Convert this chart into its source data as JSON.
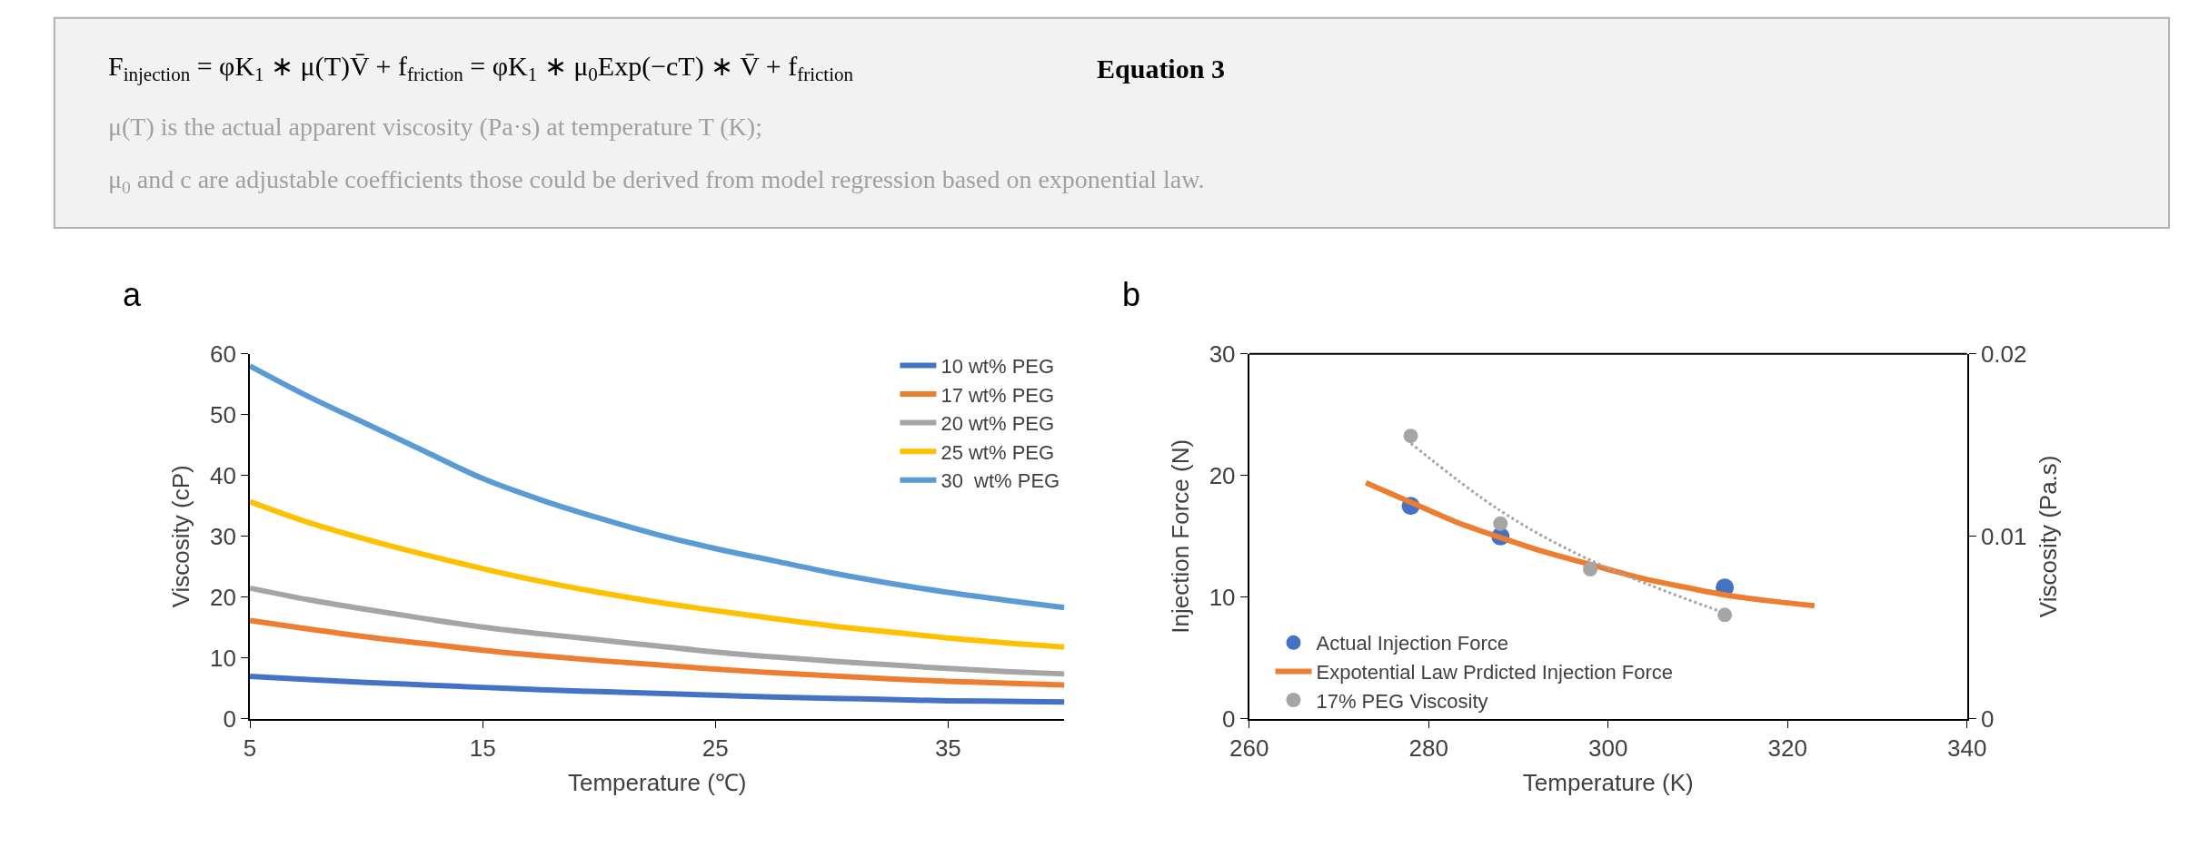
{
  "chart_data": [
    {
      "type": "other",
      "annotations": [
        "F$_{injection}$ = φK$_{1}$ ∗ μ(T)V̄ + f$_{friction}$ = φK$_{1}$ ∗ μ$_{0}$Exp(−cT) ∗ V̄ + f$_{friction}$",
        "Equation 3",
        "μ(T) is the actual apparent viscosity (Pa·s) at temperature T (K);",
        "μ$_{0}$ and c are adjustable coefficients those could be derived from model regression based on exponential law."
      ]
    },
    {
      "type": "line",
      "xlabel": "Temperature (℃)",
      "ylabel": "Viscosity (cP)",
      "annotations": [
        "a"
      ],
      "x": [
        5,
        7.5,
        10,
        12.5,
        15,
        17.5,
        20,
        22.5,
        25,
        27.5,
        30,
        32.5,
        35,
        37.5,
        40
      ],
      "xlim": [
        5,
        40
      ],
      "xticks": [
        5,
        15,
        25,
        35
      ],
      "ylim": [
        0,
        60
      ],
      "yticks": [
        0,
        10,
        20,
        30,
        40,
        50,
        60
      ],
      "legend": "top right",
      "series": [
        {
          "name": "10 wt% PEG",
          "color": "#4472c4",
          "values": [
            7,
            6.5,
            6,
            5.6,
            5.2,
            4.8,
            4.5,
            4.2,
            3.9,
            3.6,
            3.4,
            3.2,
            3.0,
            2.9,
            2.8
          ]
        },
        {
          "name": "17 wt% PEG",
          "color": "#ed7d31",
          "values": [
            16.2,
            14.8,
            13.5,
            12.4,
            11.3,
            10.4,
            9.6,
            8.9,
            8.2,
            7.6,
            7.1,
            6.6,
            6.2,
            5.9,
            5.6
          ]
        },
        {
          "name": "20 wt% PEG",
          "color": "#a5a5a5",
          "values": [
            21.5,
            19.6,
            18,
            16.5,
            15.1,
            14,
            13,
            12,
            11,
            10.2,
            9.5,
            8.9,
            8.3,
            7.8,
            7.4
          ]
        },
        {
          "name": "25 wt% PEG",
          "color": "#ffc000",
          "values": [
            35.7,
            32.3,
            29.5,
            27,
            24.7,
            22.6,
            20.8,
            19.2,
            17.8,
            16.5,
            15.3,
            14.3,
            13.3,
            12.5,
            11.8
          ]
        },
        {
          "name": "30  wt% PEG",
          "color": "#5b9bd5",
          "values": [
            58,
            53,
            48.5,
            44,
            39.5,
            36,
            33,
            30.3,
            28,
            26,
            24,
            22.3,
            20.8,
            19.5,
            18.3
          ]
        }
      ]
    },
    {
      "type": "scatter",
      "xlabel": "Temperature (K)",
      "ylabel": "Injection Force (N)",
      "y2label": "Viscosity (Pa.s)",
      "annotations": [
        "b"
      ],
      "xlim": [
        260,
        340
      ],
      "xticks": [
        260,
        280,
        300,
        320,
        340
      ],
      "ylim": [
        0,
        30
      ],
      "yticks": [
        0,
        10,
        20,
        30
      ],
      "y2lim": [
        0,
        0.02
      ],
      "y2ticks": [
        0,
        0.01,
        0.02
      ],
      "legend": "bottom left",
      "series": [
        {
          "name": "Actual Injection Force",
          "color": "#4472c4",
          "type": "scatter",
          "marker": "circle",
          "x": [
            278,
            288,
            298,
            313
          ],
          "values": [
            17.5,
            15,
            null,
            10.8
          ]
        },
        {
          "name": "Expotential Law Prdicted Injection Force",
          "color": "#ed7d31",
          "type": "line",
          "x": [
            273,
            278,
            283,
            288,
            293,
            298,
            303,
            308,
            313,
            318,
            323
          ],
          "values": [
            19.4,
            17.8,
            16.2,
            14.9,
            13.7,
            12.7,
            11.7,
            10.9,
            10.2,
            9.7,
            9.3
          ]
        },
        {
          "name": "17% PEG Viscosity",
          "color": "#a5a5a5",
          "type": "scatter",
          "marker": "circle",
          "axis": "y2",
          "x": [
            278,
            288,
            298,
            313
          ],
          "values": [
            0.0155,
            0.0107,
            0.0082,
            0.0057
          ]
        },
        {
          "color": "#a5a5a5",
          "type": "line",
          "line_style": "dotted",
          "axis": "y2",
          "x": [
            278,
            288,
            298,
            313
          ],
          "values": [
            0.0151,
            0.0114,
            0.0087,
            0.0058
          ]
        }
      ]
    }
  ]
}
